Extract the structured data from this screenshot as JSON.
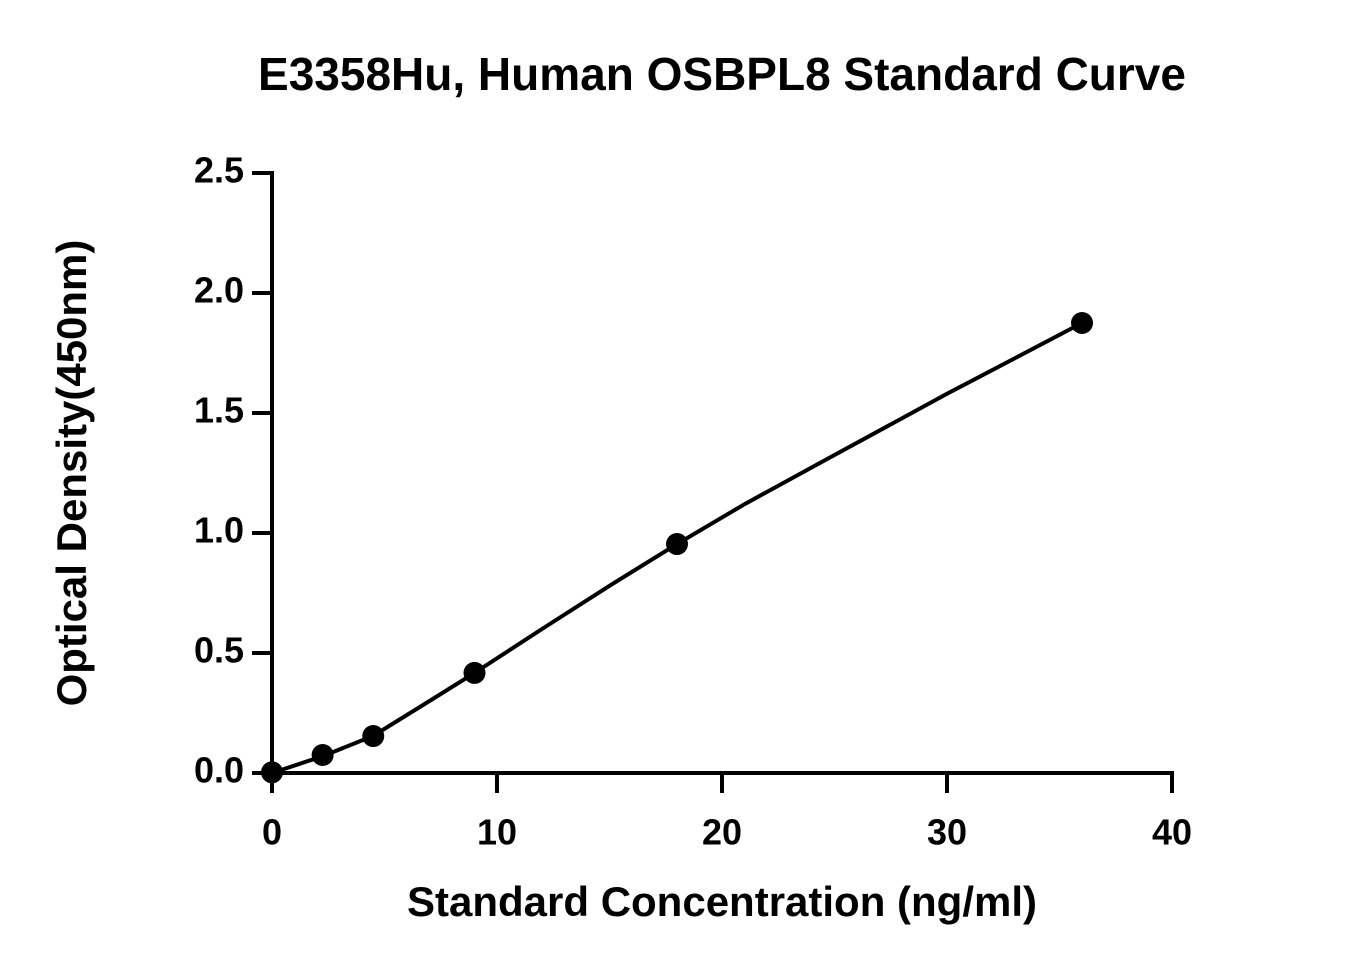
{
  "chart_data": {
    "type": "scatter",
    "title": "E3358Hu, Human OSBPL8 Standard Curve",
    "x_label": "Standard Concentration (ng/ml)",
    "y_label": "Optical Density(450nm)",
    "x": [
      0,
      2.25,
      4.5,
      9,
      18,
      36
    ],
    "values": [
      0.003,
      0.075,
      0.154,
      0.417,
      0.954,
      1.875
    ],
    "color": "#000000",
    "fit": {
      "x": [
        0,
        2.25,
        4.5,
        7,
        9,
        12,
        15,
        18,
        21,
        25,
        30,
        36
      ],
      "values": [
        0,
        0.07,
        0.155,
        0.3,
        0.417,
        0.6,
        0.78,
        0.954,
        1.12,
        1.325,
        1.58,
        1.875
      ]
    },
    "xlim": [
      0,
      40
    ],
    "ylim": [
      0,
      2.5
    ],
    "xticks": [
      0,
      10,
      20,
      30,
      40
    ],
    "yticks": [
      {
        "value": 0,
        "label": "0.0"
      },
      {
        "value": 0.5,
        "label": "0.5"
      },
      {
        "value": 1,
        "label": "1.0"
      },
      {
        "value": 1.5,
        "label": "1.5"
      },
      {
        "value": 2,
        "label": "2.0"
      },
      {
        "value": 2.5,
        "label": "2.5"
      }
    ],
    "grid": false
  }
}
